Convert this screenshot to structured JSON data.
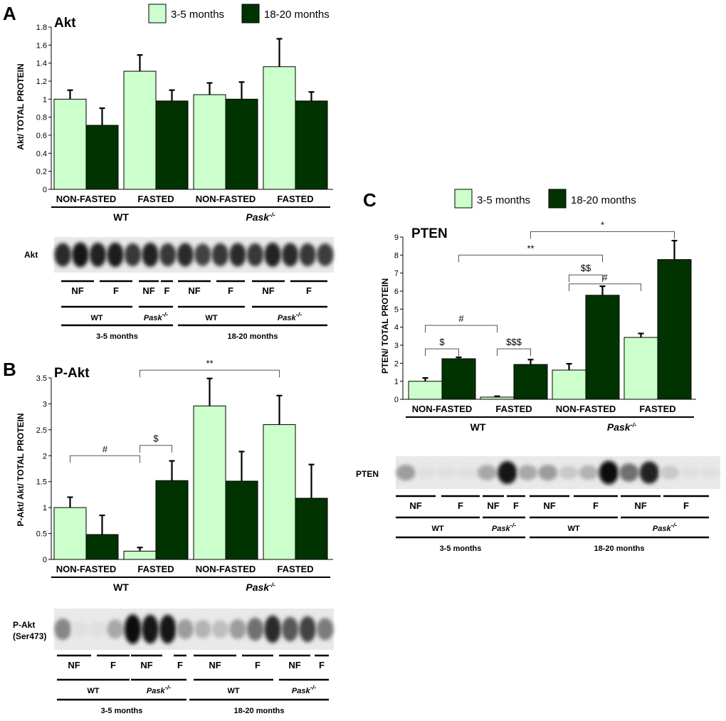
{
  "colors": {
    "young": "#ccffcc",
    "old": "#003300",
    "stroke": "#000000"
  },
  "legend": [
    {
      "key": "young",
      "label": "3-5 months"
    },
    {
      "key": "old",
      "label": "18-20 months"
    }
  ],
  "chart_data": [
    {
      "panel": "A",
      "type": "bar",
      "title": "Akt",
      "ylabel": "Akt/ TOTAL PROTEIN",
      "ylim": [
        0,
        1.8
      ],
      "yticks": [
        "0",
        "0.2",
        "0.4",
        "0.6",
        "0.8",
        "1",
        "1.2",
        "1.4",
        "1.6",
        "1.8"
      ],
      "categories": [
        "NON-FASTED",
        "FASTED",
        "NON-FASTED",
        "FASTED"
      ],
      "groups": [
        {
          "label": "WT",
          "italic": false,
          "sup": ""
        },
        {
          "label": "Pask",
          "italic": true,
          "sup": "-/-"
        }
      ],
      "series": [
        {
          "name": "3-5 months",
          "values": [
            1.0,
            1.31,
            1.05,
            1.36
          ],
          "errors": [
            0.1,
            0.18,
            0.13,
            0.31
          ]
        },
        {
          "name": "18-20 months",
          "values": [
            0.71,
            0.98,
            1.0,
            0.98
          ],
          "errors": [
            0.19,
            0.12,
            0.19,
            0.1
          ]
        }
      ],
      "annotations": []
    },
    {
      "panel": "B",
      "type": "bar",
      "title": "P-Akt",
      "ylabel": "P-Akt/ Akt/ TOTAL PROTEIN",
      "ylim": [
        0,
        3.5
      ],
      "yticks": [
        "0",
        "0.5",
        "1",
        "1.5",
        "2",
        "2.5",
        "3",
        "3.5"
      ],
      "categories": [
        "NON-FASTED",
        "FASTED",
        "NON-FASTED",
        "FASTED"
      ],
      "groups": [
        {
          "label": "WT",
          "italic": false,
          "sup": ""
        },
        {
          "label": "Pask",
          "italic": true,
          "sup": "-/-"
        }
      ],
      "series": [
        {
          "name": "3-5 months",
          "values": [
            1.0,
            0.16,
            2.96,
            2.6
          ],
          "errors": [
            0.2,
            0.07,
            0.53,
            0.56
          ]
        },
        {
          "name": "18-20 months",
          "values": [
            0.48,
            1.52,
            1.51,
            1.18
          ],
          "errors": [
            0.37,
            0.38,
            0.57,
            0.65
          ]
        }
      ],
      "annotations": [
        {
          "label": "#",
          "from": [
            0,
            "young"
          ],
          "to": [
            1,
            "young"
          ],
          "level": 2.0
        },
        {
          "label": "$",
          "from": [
            1,
            "young"
          ],
          "to": [
            1,
            "old"
          ],
          "level": 2.2
        },
        {
          "label": "**",
          "from": [
            1,
            "young"
          ],
          "to": [
            3,
            "young"
          ],
          "level": 3.65
        }
      ]
    },
    {
      "panel": "C",
      "type": "bar",
      "title": "PTEN",
      "ylabel": "PTEN/ TOTAL PROTEIN",
      "ylim": [
        0,
        9
      ],
      "yticks": [
        "0",
        "1",
        "2",
        "3",
        "4",
        "5",
        "6",
        "7",
        "8",
        "9"
      ],
      "categories": [
        "NON-FASTED",
        "FASTED",
        "NON-FASTED",
        "FASTED"
      ],
      "groups": [
        {
          "label": "WT",
          "italic": false,
          "sup": ""
        },
        {
          "label": "Pask",
          "italic": true,
          "sup": "-/-"
        }
      ],
      "series": [
        {
          "name": "3-5 months",
          "values": [
            1.0,
            0.12,
            1.62,
            3.43
          ],
          "errors": [
            0.18,
            0.05,
            0.35,
            0.22
          ]
        },
        {
          "name": "18-20 months",
          "values": [
            2.25,
            1.93,
            5.77,
            7.75
          ],
          "errors": [
            0.08,
            0.27,
            0.5,
            1.05
          ]
        }
      ],
      "annotations": [
        {
          "label": "$",
          "from": [
            0,
            "young"
          ],
          "to": [
            0,
            "old"
          ],
          "level": 2.8
        },
        {
          "label": "#",
          "from": [
            0,
            "young"
          ],
          "to": [
            1,
            "young"
          ],
          "level": 4.1
        },
        {
          "label": "$$$",
          "from": [
            1,
            "young"
          ],
          "to": [
            1,
            "old"
          ],
          "level": 2.8
        },
        {
          "label": "$$",
          "from": [
            2,
            "young"
          ],
          "to": [
            2,
            "old"
          ],
          "level": 6.9
        },
        {
          "label": "#",
          "from": [
            2,
            "young"
          ],
          "to": [
            3,
            "young"
          ],
          "level": 6.4
        },
        {
          "label": "**",
          "from": [
            0,
            "old"
          ],
          "to": [
            2,
            "old"
          ],
          "level": 8.0
        },
        {
          "label": "*",
          "from": [
            1,
            "old"
          ],
          "to": [
            3,
            "old"
          ],
          "level": 9.3
        }
      ]
    }
  ],
  "blots": [
    {
      "panel": "A",
      "label_lines": [
        "Akt"
      ],
      "lanes": [
        "NF",
        "F",
        "NF",
        "F",
        "NF",
        "F",
        "NF",
        "F"
      ],
      "genotypes": [
        {
          "label": "WT",
          "italic": false,
          "sup": ""
        },
        {
          "label": "Pask",
          "italic": true,
          "sup": "-/-"
        },
        {
          "label": "WT",
          "italic": false,
          "sup": ""
        },
        {
          "label": "Pask",
          "italic": true,
          "sup": "-/-"
        }
      ],
      "ages": [
        "3-5 months",
        "18-20 months"
      ],
      "band_intensity": [
        0.85,
        0.95,
        0.9,
        0.92,
        0.8,
        0.9,
        0.8,
        0.85,
        0.75,
        0.8,
        0.85,
        0.8,
        0.9,
        0.85,
        0.8,
        0.78
      ]
    },
    {
      "panel": "B",
      "label_lines": [
        "P-Akt",
        "(Ser473)"
      ],
      "lanes": [
        "NF",
        "F",
        "NF",
        "F",
        "NF",
        "F",
        "NF",
        "F"
      ],
      "genotypes": [
        {
          "label": "WT",
          "italic": false,
          "sup": ""
        },
        {
          "label": "Pask",
          "italic": true,
          "sup": "-/-"
        },
        {
          "label": "WT",
          "italic": false,
          "sup": ""
        },
        {
          "label": "Pask",
          "italic": true,
          "sup": "-/-"
        }
      ],
      "ages": [
        "3-5 months",
        "18-20 months"
      ],
      "band_intensity": [
        0.45,
        0.05,
        0.05,
        0.3,
        1.0,
        0.95,
        0.95,
        0.35,
        0.25,
        0.2,
        0.35,
        0.55,
        0.85,
        0.65,
        0.75,
        0.5
      ]
    },
    {
      "panel": "C",
      "label_lines": [
        "PTEN"
      ],
      "lanes": [
        "NF",
        "F",
        "NF",
        "F",
        "NF",
        "F",
        "NF",
        "F"
      ],
      "genotypes": [
        {
          "label": "WT",
          "italic": false,
          "sup": ""
        },
        {
          "label": "Pask",
          "italic": true,
          "sup": "-/-"
        },
        {
          "label": "WT",
          "italic": false,
          "sup": ""
        },
        {
          "label": "Pask",
          "italic": true,
          "sup": "-/-"
        }
      ],
      "ages": [
        "3-5 months",
        "18-20 months"
      ],
      "band_intensity": [
        0.35,
        0.05,
        0.05,
        0.05,
        0.3,
        0.95,
        0.3,
        0.35,
        0.15,
        0.25,
        1.0,
        0.55,
        0.9,
        0.15,
        0.05,
        0.05
      ]
    }
  ]
}
